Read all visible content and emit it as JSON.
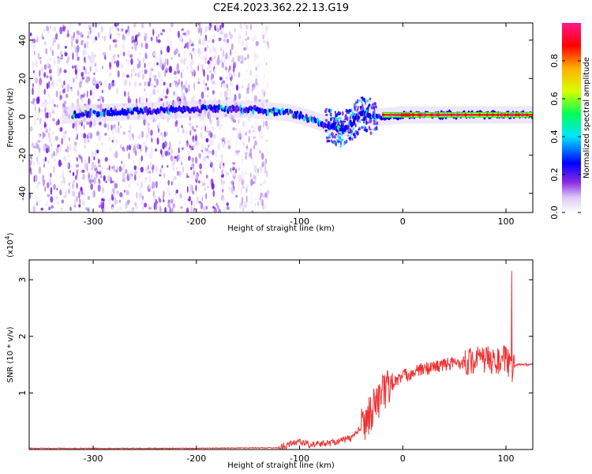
{
  "title": "C2E4.2023.362.22.13.G19",
  "chart_data": [
    {
      "type": "heatmap",
      "xlabel": "Height of straight line (km)",
      "ylabel": "Frequency (Hz)",
      "xlim": [
        -362,
        126
      ],
      "ylim": [
        -50,
        49
      ],
      "xticks": [
        "-300",
        "-200",
        "-100",
        "0",
        "100"
      ],
      "yticks": [
        "-40",
        "-20",
        "0",
        "20",
        "40"
      ],
      "colorbar": {
        "label": "Normalized spectral amplitude",
        "range": [
          0,
          1
        ],
        "ticks": [
          "0.0",
          "0.2",
          "0.4",
          "0.6",
          "0.8"
        ],
        "colormap": [
          "#ffffff",
          "#dcc8f5",
          "#8a2be2",
          "#0000ff",
          "#00e5ff",
          "#00ff55",
          "#d8ff00",
          "#ffb000",
          "#ff0000",
          "#ff1a8c"
        ]
      },
      "signal_track": {
        "x": [
          -320,
          -300,
          -250,
          -200,
          -150,
          -130,
          -110,
          -90,
          -75,
          -60,
          -50,
          -40,
          -30,
          -20,
          0,
          30,
          60,
          90,
          100,
          126
        ],
        "y": [
          1,
          2,
          3,
          4,
          4,
          3,
          2,
          -1,
          -4,
          -7,
          -4,
          2,
          0,
          0,
          1,
          1,
          1,
          1,
          1,
          1
        ]
      },
      "noise_extent_x": [
        -362,
        -130
      ]
    },
    {
      "type": "line",
      "xlabel": "Height of straight line (km)",
      "ylabel": "SNR (10 * v/v)",
      "y_scale_label": "(x10^4)",
      "xlim": [
        -362,
        126
      ],
      "ylim": [
        0,
        3.35
      ],
      "xticks": [
        "-300",
        "-200",
        "-100",
        "0",
        "100"
      ],
      "yticks": [
        "1",
        "2",
        "3"
      ],
      "color": "#ee3333",
      "series": [
        {
          "x": [
            -362,
            -300,
            -200,
            -150,
            -120,
            -100,
            -90,
            -70,
            -50,
            -40,
            -30,
            -20,
            -10,
            0,
            20,
            40,
            60,
            80,
            90,
            100,
            105,
            110,
            126
          ],
          "y": [
            0.02,
            0.02,
            0.02,
            0.03,
            0.03,
            0.15,
            0.08,
            0.12,
            0.2,
            0.4,
            0.7,
            1.0,
            1.15,
            1.3,
            1.42,
            1.5,
            1.55,
            1.6,
            1.55,
            1.6,
            1.4,
            1.5,
            1.5
          ]
        }
      ]
    }
  ]
}
